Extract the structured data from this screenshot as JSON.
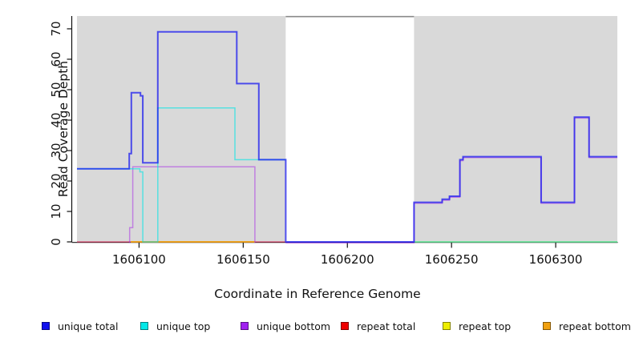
{
  "chart_data": {
    "type": "line",
    "step": true,
    "title": "",
    "xlabel": "Coordinate in Reference Genome",
    "ylabel": "Read Coverage Depth",
    "xlim": [
      1606070.2,
      1606329.6
    ],
    "ylim": [
      0,
      74.2
    ],
    "x_ticks": [
      1606100,
      1606150,
      1606200,
      1606250,
      1606300
    ],
    "y_ticks": [
      0,
      10,
      20,
      30,
      40,
      50,
      60,
      70
    ],
    "grid": false,
    "legend_position": "bottom",
    "plot_bg_color": "#ffffff",
    "shaded_region_color": "#d9d9d9",
    "shaded_regions": [
      [
        1606070.2,
        1606170.4
      ],
      [
        1606232,
        1606329.6
      ]
    ],
    "gap_top_border": {
      "from": 1606170.4,
      "to": 1606232,
      "color": "#8a8a8a"
    },
    "series": [
      {
        "name": "repeat total",
        "color": "#E02050",
        "opacity": 0.6,
        "width": 1.5,
        "paths": [
          {
            "points": [
              [
                1606070.2,
                0
              ]
            ],
            "end": 1606170.4
          }
        ]
      },
      {
        "name": "repeat top",
        "color": "#EFEF00",
        "opacity": 0.7,
        "width": 1.5,
        "paths": [
          {
            "points": [
              [
                1606096,
                0
              ]
            ],
            "end": 1606155.6
          },
          {
            "points": [
              [
                1606232,
                0
              ]
            ],
            "end": 1606329.6
          }
        ]
      },
      {
        "name": "repeat bottom",
        "color": "#F59500",
        "opacity": 0.85,
        "width": 1.5,
        "paths": [
          {
            "points": [
              [
                1606096,
                0
              ]
            ],
            "end": 1606155.6
          }
        ]
      },
      {
        "name": "unique bottom",
        "color": "#A828E8",
        "opacity": 0.5,
        "width": 1.5,
        "paths": [
          {
            "points": [
              [
                1606095.5,
                0
              ],
              [
                1606095.5,
                5
              ],
              [
                1606097,
                25
              ],
              [
                1606155.6,
                0
              ]
            ],
            "end": 1606155.6
          },
          {
            "points": [
              [
                1606170.4,
                0
              ],
              [
                1606232,
                13
              ],
              [
                1606245.5,
                14
              ],
              [
                1606249,
                15
              ],
              [
                1606254,
                27
              ],
              [
                1606255.5,
                28
              ],
              [
                1606293,
                13
              ],
              [
                1606309,
                41
              ],
              [
                1606316,
                28
              ]
            ],
            "end": 1606329.6
          }
        ]
      },
      {
        "name": "unique top",
        "color": "#00E5E5",
        "opacity": 0.6,
        "width": 1.5,
        "paths": [
          {
            "points": [
              [
                1606070.2,
                24
              ],
              [
                1606100.4,
                23
              ],
              [
                1606101.8,
                0
              ],
              [
                1606109,
                44
              ],
              [
                1606146,
                27
              ]
            ],
            "end": 1606170.4
          },
          {
            "points": [
              [
                1606232,
                0
              ]
            ],
            "end": 1606329.6
          }
        ]
      },
      {
        "name": "unique total",
        "color": "#1414F0",
        "opacity": 0.72,
        "width": 2,
        "paths": [
          {
            "points": [
              [
                1606070.2,
                24
              ],
              [
                1606095.3,
                29
              ],
              [
                1606096.3,
                49
              ],
              [
                1606100.7,
                48
              ],
              [
                1606101.8,
                26
              ],
              [
                1606109,
                69
              ],
              [
                1606146.9,
                52
              ],
              [
                1606157.5,
                27
              ],
              [
                1606170.4,
                0
              ],
              [
                1606232,
                13
              ],
              [
                1606245.5,
                14
              ],
              [
                1606249,
                15
              ],
              [
                1606254,
                27
              ],
              [
                1606255.5,
                28
              ],
              [
                1606293,
                13
              ],
              [
                1606309,
                41
              ],
              [
                1606316,
                28
              ]
            ],
            "end": 1606329.6
          }
        ]
      }
    ]
  },
  "legend": {
    "items": [
      {
        "label": "unique total",
        "color": "#0F0FEE"
      },
      {
        "label": "unique top",
        "color": "#00E8E8"
      },
      {
        "label": "unique bottom",
        "color": "#A020F0"
      },
      {
        "label": "repeat total",
        "color": "#EE0000"
      },
      {
        "label": "repeat top",
        "color": "#EEEE00"
      },
      {
        "label": "repeat bottom",
        "color": "#F0A010"
      }
    ]
  }
}
